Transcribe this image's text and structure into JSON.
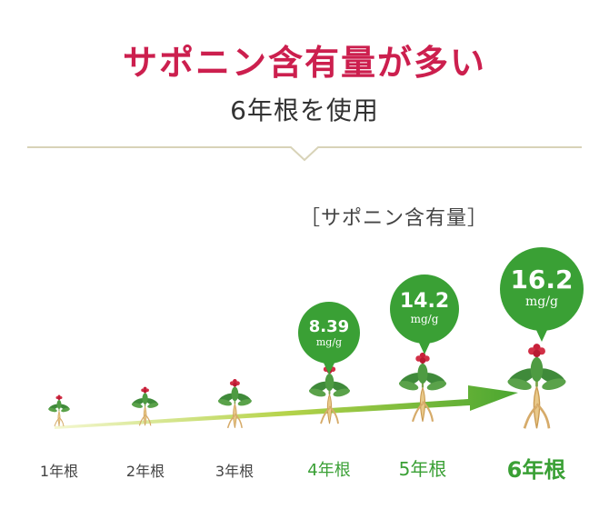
{
  "header": {
    "title": "サポニン含有量が多い",
    "subtitle": "6年根を使用"
  },
  "chart_data": {
    "type": "bar",
    "title": "［サポニン含有量］",
    "categories": [
      "1年根",
      "2年根",
      "3年根",
      "4年根",
      "5年根",
      "6年根"
    ],
    "labeled_values": [
      {
        "category": "4年根",
        "value": "8.39",
        "unit": "mg/g"
      },
      {
        "category": "5年根",
        "value": "14.2",
        "unit": "mg/g"
      },
      {
        "category": "6年根",
        "value": "16.2",
        "unit": "mg/g"
      }
    ]
  },
  "colors": {
    "title": "#cc1f4e",
    "bubble": "#3aa035",
    "year_green": "#3aa035",
    "year_gray": "#444444",
    "divider": "#d8d3b8"
  }
}
